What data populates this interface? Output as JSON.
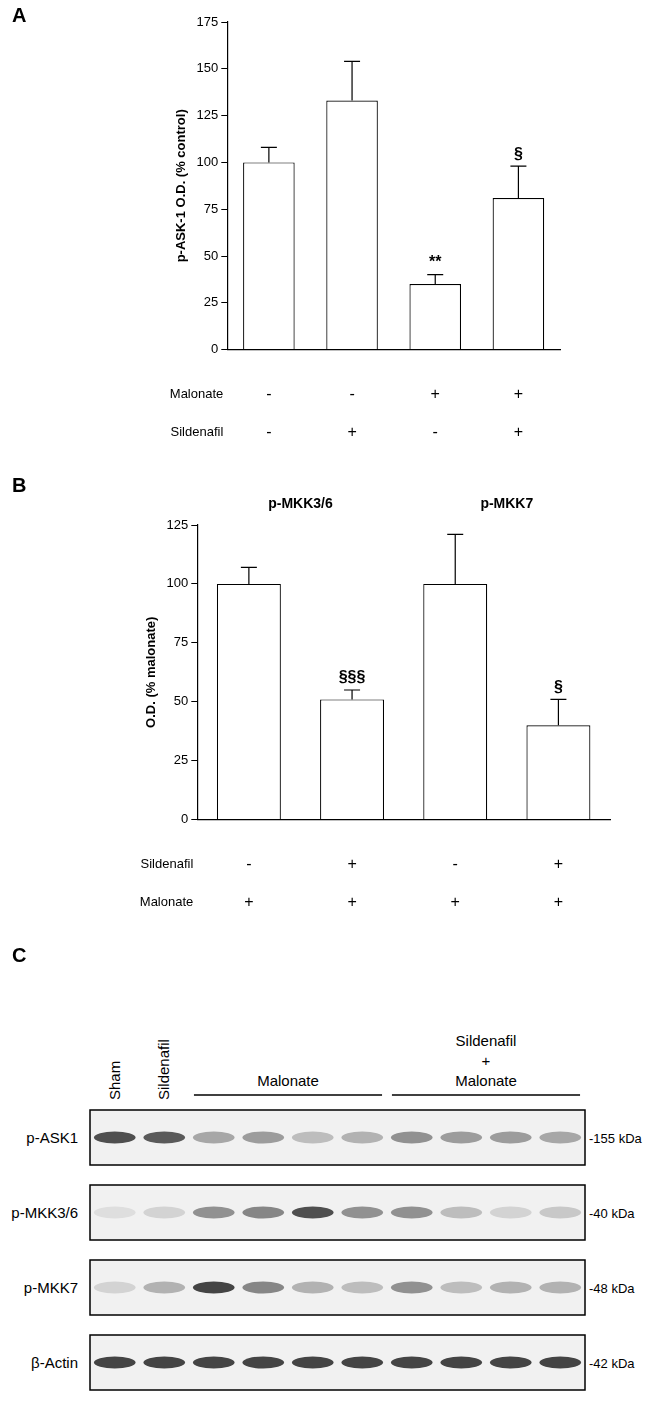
{
  "chart_data": [
    {
      "panel": "A",
      "type": "bar",
      "y_label": "p-ASK-1 O.D. (% control)",
      "categories": [
        null,
        null,
        null,
        null
      ],
      "values": [
        100,
        133,
        35,
        81
      ],
      "errors": [
        8,
        21,
        5,
        17
      ],
      "annotations": [
        null,
        null,
        "**",
        "§"
      ],
      "treatments": [
        {
          "name": "Malonate",
          "signs": [
            "-",
            "-",
            "+",
            "+"
          ]
        },
        {
          "name": "Sildenafil",
          "signs": [
            "-",
            "+",
            "-",
            "+"
          ]
        }
      ],
      "color": "#ffffff",
      "ylim": [
        0,
        175
      ],
      "yticks": [
        0,
        25,
        50,
        75,
        100,
        125,
        150,
        175
      ],
      "grid": false
    },
    {
      "panel": "B",
      "type": "bar",
      "y_label": "O.D. (% malonate)",
      "categories": [
        null,
        null,
        null,
        null
      ],
      "values": [
        100,
        51,
        100,
        40
      ],
      "errors": [
        7,
        4,
        21,
        11
      ],
      "annotations": [
        null,
        "§§§",
        null,
        "§"
      ],
      "groups": [
        {
          "label": "p-MKK3/6",
          "from": 0,
          "to": 1
        },
        {
          "label": "p-MKK7",
          "from": 2,
          "to": 3
        }
      ],
      "treatments": [
        {
          "name": "Sildenafil",
          "signs": [
            "-",
            "+",
            "-",
            "+"
          ]
        },
        {
          "name": "Malonate",
          "signs": [
            "+",
            "+",
            "+",
            "+"
          ]
        }
      ],
      "color": "#ffffff",
      "ylim": [
        0,
        125
      ],
      "yticks": [
        0,
        25,
        50,
        75,
        100,
        125
      ],
      "grid": false
    }
  ],
  "blot": {
    "panel": "C",
    "lanes": 10,
    "lane_labels": [
      {
        "lines": [
          "Sham"
        ],
        "lanes": [
          1,
          1
        ]
      },
      {
        "lines": [
          "Sildenafil"
        ],
        "lanes": [
          2,
          2
        ]
      },
      {
        "lines": [
          "Malonate"
        ],
        "lanes": [
          3,
          6
        ]
      },
      {
        "lines": [
          "Sildenafil",
          "+",
          "Malonate"
        ],
        "lanes": [
          7,
          10
        ]
      }
    ],
    "rows": [
      {
        "label": "p-ASK1",
        "size": "-155 kDa",
        "bands": [
          0.8,
          0.75,
          0.4,
          0.45,
          0.3,
          0.35,
          0.5,
          0.45,
          0.45,
          0.4
        ]
      },
      {
        "label": "p-MKK3/6",
        "size": "-40 kDa",
        "bands": [
          0.15,
          0.2,
          0.5,
          0.55,
          0.8,
          0.5,
          0.5,
          0.3,
          0.2,
          0.25
        ]
      },
      {
        "label": "p-MKK7",
        "size": "-48 kDa",
        "bands": [
          0.2,
          0.35,
          0.85,
          0.55,
          0.35,
          0.3,
          0.5,
          0.3,
          0.35,
          0.35
        ]
      },
      {
        "label": "β-Actin",
        "size": "-42 kDa",
        "bands": [
          0.85,
          0.85,
          0.85,
          0.85,
          0.85,
          0.85,
          0.85,
          0.85,
          0.85,
          0.85
        ]
      }
    ]
  }
}
